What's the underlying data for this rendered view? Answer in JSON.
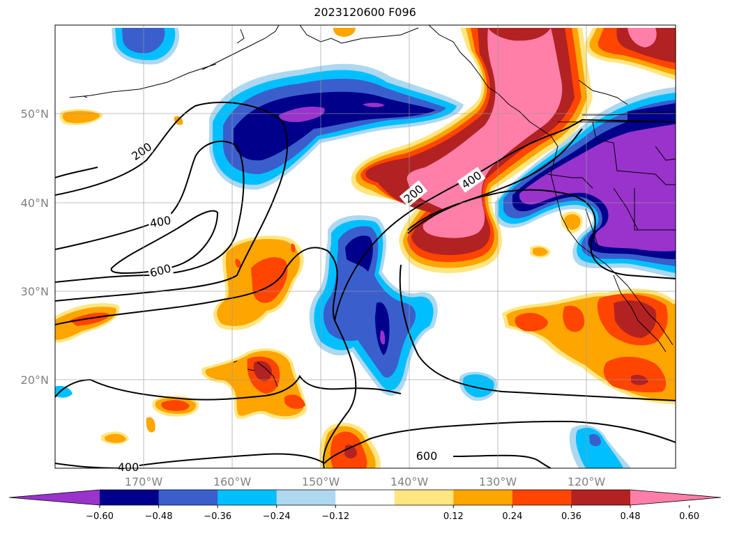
{
  "title": "2023120600 F096",
  "map": {
    "lon_labels": [
      "170°W",
      "160°W",
      "150°W",
      "140°W",
      "130°W",
      "120°W"
    ],
    "lat_labels": [
      "50°N",
      "40°N",
      "30°N",
      "20°N"
    ],
    "contour_labels": [
      "200",
      "400",
      "600",
      "200",
      "400",
      "600",
      "400"
    ],
    "grid": true
  },
  "colorbar": {
    "ticks": [
      "−0.60",
      "−0.48",
      "−0.36",
      "−0.24",
      "−0.12",
      "0.12",
      "0.24",
      "0.36",
      "0.48",
      "0.60"
    ],
    "colors": [
      "#9933cc",
      "#00008b",
      "#3a5fcd",
      "#00bfff",
      "#add8f0",
      "#ffffff",
      "#ffe680",
      "#ffa500",
      "#ff4500",
      "#b22222",
      "#ff7fa8"
    ],
    "extend": "both"
  }
}
